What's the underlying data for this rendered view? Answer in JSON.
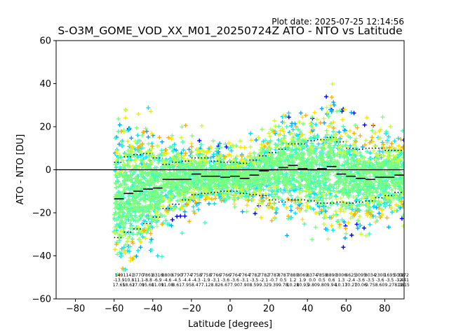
{
  "header": {
    "plot_date": "Plot date: 2025-07-25 12:14:56",
    "title": "S-O3M_GOME_VOD_XX_M01_20250724Z ATO - NTO vs Latitude"
  },
  "chart_data": {
    "type": "scatter",
    "title": "S-O3M_GOME_VOD_XX_M01_20250724Z ATO - NTO vs Latitude",
    "xlabel": "Latitude [degrees]",
    "ylabel": "ATO - NTO [DU]",
    "xlim": [
      -90,
      90
    ],
    "ylim": [
      -60,
      60
    ],
    "xticks": [
      -80,
      -60,
      -40,
      -20,
      0,
      20,
      40,
      60,
      80
    ],
    "yticks": [
      -60,
      -40,
      -20,
      0,
      20,
      40,
      60
    ],
    "xtick_labels": [
      "−80",
      "−60",
      "−40",
      "−20",
      "0",
      "20",
      "40",
      "60",
      "80"
    ],
    "ytick_labels": [
      "−60",
      "−40",
      "−20",
      "0",
      "20",
      "40",
      "60"
    ],
    "zero_line": 0,
    "grid": false,
    "marker": "+",
    "density_colors": [
      "#0000ff",
      "#00a8ff",
      "#00e5ff",
      "#40ffb8",
      "#7dff7d",
      "#c6ff3a",
      "#ffe400",
      "#ffb000"
    ],
    "bins": [
      {
        "lat": -57.5,
        "mean": -13.5,
        "p_low": -31.5,
        "p_high": 3.5
      },
      {
        "lat": -52.5,
        "mean": -11.0,
        "p_low": -29.0,
        "p_high": 6.0
      },
      {
        "lat": -47.5,
        "mean": -10.0,
        "p_low": -27.5,
        "p_high": 7.0
      },
      {
        "lat": -42.5,
        "mean": -9.0,
        "p_low": -25.0,
        "p_high": 7.5
      },
      {
        "lat": -37.5,
        "mean": -8.5,
        "p_low": -22.0,
        "p_high": 5.5
      },
      {
        "lat": -32.5,
        "mean": -4.5,
        "p_low": -18.0,
        "p_high": 2.5
      },
      {
        "lat": -27.5,
        "mean": -4.5,
        "p_low": -16.0,
        "p_high": 3.5
      },
      {
        "lat": -22.5,
        "mean": -4.5,
        "p_low": -14.0,
        "p_high": 4.0
      },
      {
        "lat": -17.5,
        "mean": -2.0,
        "p_low": -11.5,
        "p_high": 5.5
      },
      {
        "lat": -12.5,
        "mean": -3.0,
        "p_low": -11.0,
        "p_high": 5.5
      },
      {
        "lat": -7.5,
        "mean": -3.0,
        "p_low": -10.5,
        "p_high": 4.0
      },
      {
        "lat": -2.5,
        "mean": -3.5,
        "p_low": -10.0,
        "p_high": 3.5
      },
      {
        "lat": 2.5,
        "mean": -3.0,
        "p_low": -10.0,
        "p_high": 3.5
      },
      {
        "lat": 7.5,
        "mean": -4.0,
        "p_low": -11.0,
        "p_high": 3.0
      },
      {
        "lat": 12.5,
        "mean": -2.5,
        "p_low": -11.5,
        "p_high": 4.5
      },
      {
        "lat": 17.5,
        "mean": -0.5,
        "p_low": -12.0,
        "p_high": 6.5
      },
      {
        "lat": 22.5,
        "mean": 0.0,
        "p_low": -14.0,
        "p_high": 8.0
      },
      {
        "lat": 27.5,
        "mean": 1.0,
        "p_low": -15.0,
        "p_high": 9.5
      },
      {
        "lat": 32.5,
        "mean": 2.0,
        "p_low": -14.0,
        "p_high": 12.0
      },
      {
        "lat": 37.5,
        "mean": 0.5,
        "p_low": -14.0,
        "p_high": 12.0
      },
      {
        "lat": 42.5,
        "mean": 0.0,
        "p_low": -14.5,
        "p_high": 13.5
      },
      {
        "lat": 47.5,
        "mean": 0.5,
        "p_low": -15.5,
        "p_high": 14.0
      },
      {
        "lat": 52.5,
        "mean": 1.5,
        "p_low": -15.5,
        "p_high": 15.0
      },
      {
        "lat": 57.5,
        "mean": -2.0,
        "p_low": -15.0,
        "p_high": 13.0
      },
      {
        "lat": 62.5,
        "mean": -3.0,
        "p_low": -15.5,
        "p_high": 10.0
      },
      {
        "lat": 67.5,
        "mean": -4.0,
        "p_low": -15.0,
        "p_high": 9.5
      },
      {
        "lat": 72.5,
        "mean": -4.5,
        "p_low": -14.5,
        "p_high": 10.0
      },
      {
        "lat": 77.5,
        "mean": -3.5,
        "p_low": -13.0,
        "p_high": 10.0
      },
      {
        "lat": 82.5,
        "mean": -3.5,
        "p_low": -12.0,
        "p_high": 9.0
      },
      {
        "lat": 87.5,
        "mean": -2.5,
        "p_low": -10.5,
        "p_high": 9.0
      }
    ],
    "bin_stats": [
      {
        "lat": -57.5,
        "n": "149",
        "mean": "-13.9",
        "sd": "17.65"
      },
      {
        "lat": -52.5,
        "n": "1141",
        "mean": "-10.8",
        "sd": "18.62"
      },
      {
        "lat": -47.5,
        "n": "3770",
        "mean": "-11.1",
        "sd": "17.09"
      },
      {
        "lat": -42.5,
        "n": "7861",
        "mean": "-8.8",
        "sd": "15.60"
      },
      {
        "lat": -37.5,
        "n": "8316",
        "mean": "-6.9",
        "sd": "11.09"
      },
      {
        "lat": -32.5,
        "n": "8800",
        "mean": "-4.6",
        "sd": "11.08"
      },
      {
        "lat": -27.5,
        "n": "6790",
        "mean": "-4.5",
        "sd": "8.61"
      },
      {
        "lat": -22.5,
        "n": "7774",
        "mean": "-4.4",
        "sd": "7.95"
      },
      {
        "lat": -17.5,
        "n": "7758",
        "mean": "-4.3",
        "sd": "8.47"
      },
      {
        "lat": -12.5,
        "n": "7758",
        "mean": "-1.9",
        "sd": "7.12"
      },
      {
        "lat": -7.5,
        "n": "7766",
        "mean": "-3.1",
        "sd": "8.82"
      },
      {
        "lat": -2.5,
        "n": "7766",
        "mean": "-3.6",
        "sd": "6.67"
      },
      {
        "lat": 2.5,
        "n": "7764",
        "mean": "-3.6",
        "sd": "7.90"
      },
      {
        "lat": 7.5,
        "n": "7764",
        "mean": "-3.1",
        "sd": "7.90"
      },
      {
        "lat": 12.5,
        "n": "7782",
        "mean": "-3.5",
        "sd": "8.59"
      },
      {
        "lat": 17.5,
        "n": "7782",
        "mean": "-2.1",
        "sd": "9.32"
      },
      {
        "lat": 22.5,
        "n": "7787",
        "mean": "-0.7",
        "sd": "9.39"
      },
      {
        "lat": 27.5,
        "n": "8787",
        "mean": "0.5",
        "sd": "9.78"
      },
      {
        "lat": 32.5,
        "n": "7880",
        "mean": "1.2",
        "sd": "10.28"
      },
      {
        "lat": 37.5,
        "n": "8069",
        "mean": "1.9",
        "sd": "10.93"
      },
      {
        "lat": 42.5,
        "n": "8374",
        "mean": "0.0",
        "sd": "9.80"
      },
      {
        "lat": 47.5,
        "n": "7858",
        "mean": "0.5",
        "sd": "9.80"
      },
      {
        "lat": 52.5,
        "n": "8890",
        "mean": "0.6",
        "sd": "9.94"
      },
      {
        "lat": 57.5,
        "n": "3006",
        "mean": "1.3",
        "sd": "10.17"
      },
      {
        "lat": 62.5,
        "n": "6625",
        "mean": "-2.4",
        "sd": "10.27"
      },
      {
        "lat": 67.5,
        "n": "3095",
        "mean": "-3.6",
        "sd": "10.06"
      },
      {
        "lat": 72.5,
        "n": "8034",
        "mean": "-3.5",
        "sd": "9.75"
      },
      {
        "lat": 77.5,
        "n": "2300",
        "mean": "-3.6",
        "sd": "8.60"
      },
      {
        "lat": 82.5,
        "n": "1695",
        "mean": "-3.5",
        "sd": "9.27"
      },
      {
        "lat": 87.5,
        "n": "5008",
        "mean": "-3.4",
        "sd": "8.18"
      }
    ],
    "end_stat": {
      "n": "3172",
      "mean": "-2.41",
      "sd": "11.15"
    }
  }
}
